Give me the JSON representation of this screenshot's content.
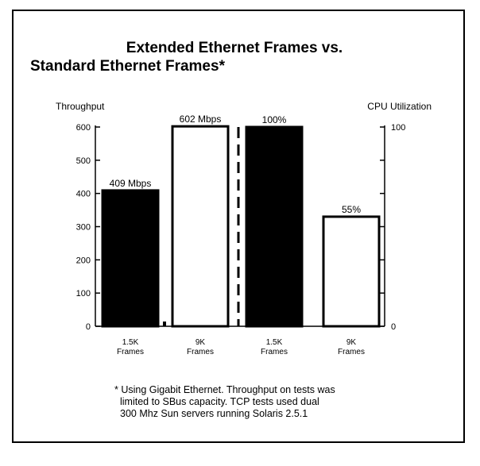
{
  "chart_data": {
    "type": "bar",
    "title": [
      "Extended Ethernet Frames vs.",
      "Standard Ethernet Frames*"
    ],
    "left_axis": {
      "label": "Throughput",
      "ticks": [
        "0",
        "100",
        "200",
        "300",
        "400",
        "500",
        "600"
      ],
      "range": [
        0,
        600
      ]
    },
    "right_axis": {
      "label": "CPU Utilization",
      "ticks": [
        "0",
        "100"
      ],
      "range": [
        0,
        100
      ]
    },
    "groups": [
      {
        "axis": "left",
        "bars": [
          {
            "category": [
              "1.5K",
              "Frames"
            ],
            "value": 409,
            "label": "409 Mbps",
            "fill": "#000000"
          },
          {
            "category": [
              "9K",
              "Frames"
            ],
            "value": 602,
            "label": "602 Mbps",
            "fill": "#ffffff"
          }
        ]
      },
      {
        "axis": "right",
        "bars": [
          {
            "category": [
              "1.5K",
              "Frames"
            ],
            "value": 100,
            "label": "100%",
            "fill": "#000000"
          },
          {
            "category": [
              "9K",
              "Frames"
            ],
            "value": 55,
            "label": "55%",
            "fill": "#ffffff"
          }
        ]
      }
    ],
    "separator": "dashed",
    "grid": false
  },
  "footnote": [
    "* Using Gigabit Ethernet.  Throughput on tests was",
    "limited to SBus capacity. TCP tests used dual",
    "300 Mhz Sun servers running Solaris 2.5.1"
  ]
}
